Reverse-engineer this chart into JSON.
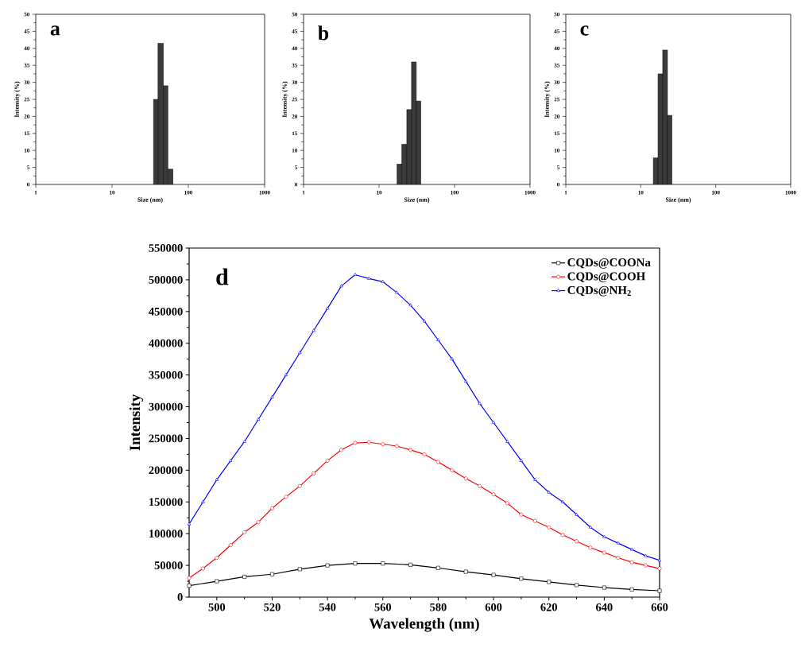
{
  "chart_data": [
    {
      "type": "histogram",
      "annotations": [
        "a"
      ],
      "xlabel": "Size (nm)",
      "ylabel": "Intensity (%)",
      "log": "x",
      "color": "#3a3a3a",
      "bins": [
        35,
        40,
        47,
        54,
        63
      ],
      "values": [
        25,
        41.5,
        29,
        4.5
      ],
      "xlim": [
        1,
        1000
      ],
      "xticks": [
        1,
        10,
        100,
        1000
      ],
      "ylim": [
        0,
        50
      ],
      "yticks": [
        0,
        5,
        10,
        15,
        20,
        25,
        30,
        35,
        40,
        45,
        50
      ]
    },
    {
      "type": "histogram",
      "annotations": [
        "b"
      ],
      "xlabel": "Size (nm)",
      "ylabel": "Intensity (%)",
      "log": "x",
      "color": "#3a3a3a",
      "bins": [
        17.3,
        20,
        23.3,
        26.9,
        31.1,
        35.7
      ],
      "values": [
        6,
        11.8,
        22,
        36,
        24.5
      ],
      "xlim": [
        1,
        1000
      ],
      "xticks": [
        1,
        10,
        100,
        1000
      ],
      "ylim": [
        0,
        50
      ],
      "yticks": [
        0,
        5,
        10,
        15,
        20,
        25,
        30,
        35,
        40,
        45,
        50
      ]
    },
    {
      "type": "histogram",
      "annotations": [
        "c"
      ],
      "xlabel": "Size (nm)",
      "ylabel": "Intensity (%)",
      "log": "x",
      "color": "#3a3a3a",
      "bins": [
        14.7,
        17,
        19.6,
        22.7,
        26
      ],
      "values": [
        7.8,
        32.5,
        39.5,
        20.3
      ],
      "xlim": [
        1,
        1000
      ],
      "xticks": [
        1,
        10,
        100,
        1000
      ],
      "ylim": [
        0,
        50
      ],
      "yticks": [
        0,
        5,
        10,
        15,
        20,
        25,
        30,
        35,
        40,
        45,
        50
      ]
    },
    {
      "type": "line",
      "annotations": [
        "d"
      ],
      "xlabel": "Wavelength (nm)",
      "ylabel": "Intensity",
      "legend": "top right",
      "xlim": [
        490,
        660
      ],
      "xticks": [
        500,
        520,
        540,
        560,
        580,
        600,
        620,
        640,
        660
      ],
      "ylim": [
        0,
        550000
      ],
      "yticks": [
        0,
        50000,
        100000,
        150000,
        200000,
        250000,
        300000,
        350000,
        400000,
        450000,
        500000,
        550000
      ],
      "series": [
        {
          "name": "CQDs@COONa",
          "color": "#000000",
          "marker": "square",
          "x": [
            490,
            500,
            510,
            520,
            530,
            540,
            550,
            560,
            570,
            580,
            590,
            600,
            610,
            620,
            630,
            640,
            650,
            660
          ],
          "values": [
            18000,
            25000,
            32000,
            36000,
            44000,
            50000,
            53000,
            53000,
            51000,
            46000,
            40000,
            35000,
            29000,
            24000,
            19000,
            15000,
            12000,
            10000
          ]
        },
        {
          "name": "CQDs@COOH",
          "color": "#ff0000",
          "marker": "circle",
          "x": [
            490,
            495,
            500,
            505,
            510,
            515,
            520,
            525,
            530,
            535,
            540,
            545,
            550,
            555,
            560,
            565,
            570,
            575,
            580,
            585,
            590,
            595,
            600,
            605,
            610,
            615,
            620,
            625,
            630,
            635,
            640,
            645,
            650,
            655,
            660
          ],
          "values": [
            30000,
            45000,
            62000,
            82000,
            102000,
            118000,
            140000,
            158000,
            175000,
            195000,
            215000,
            232000,
            243000,
            244000,
            241000,
            238000,
            232000,
            225000,
            213000,
            200000,
            187000,
            175000,
            162000,
            148000,
            130000,
            120000,
            110000,
            98000,
            88000,
            78000,
            70000,
            62000,
            55000,
            50000,
            45000
          ]
        },
        {
          "name": "CQDs@NH$_{2}$",
          "color": "#0000ff",
          "marker": "triangle",
          "x": [
            490,
            495,
            500,
            505,
            510,
            515,
            520,
            525,
            530,
            535,
            540,
            545,
            550,
            555,
            560,
            565,
            570,
            575,
            580,
            585,
            590,
            595,
            600,
            605,
            610,
            615,
            620,
            625,
            630,
            635,
            640,
            645,
            650,
            655,
            660
          ],
          "values": [
            115000,
            150000,
            185000,
            215000,
            245000,
            280000,
            315000,
            350000,
            385000,
            420000,
            455000,
            490000,
            508000,
            502000,
            497000,
            480000,
            460000,
            435000,
            405000,
            375000,
            340000,
            305000,
            275000,
            245000,
            215000,
            185000,
            165000,
            150000,
            130000,
            110000,
            95000,
            85000,
            75000,
            65000,
            58000
          ]
        }
      ]
    }
  ]
}
